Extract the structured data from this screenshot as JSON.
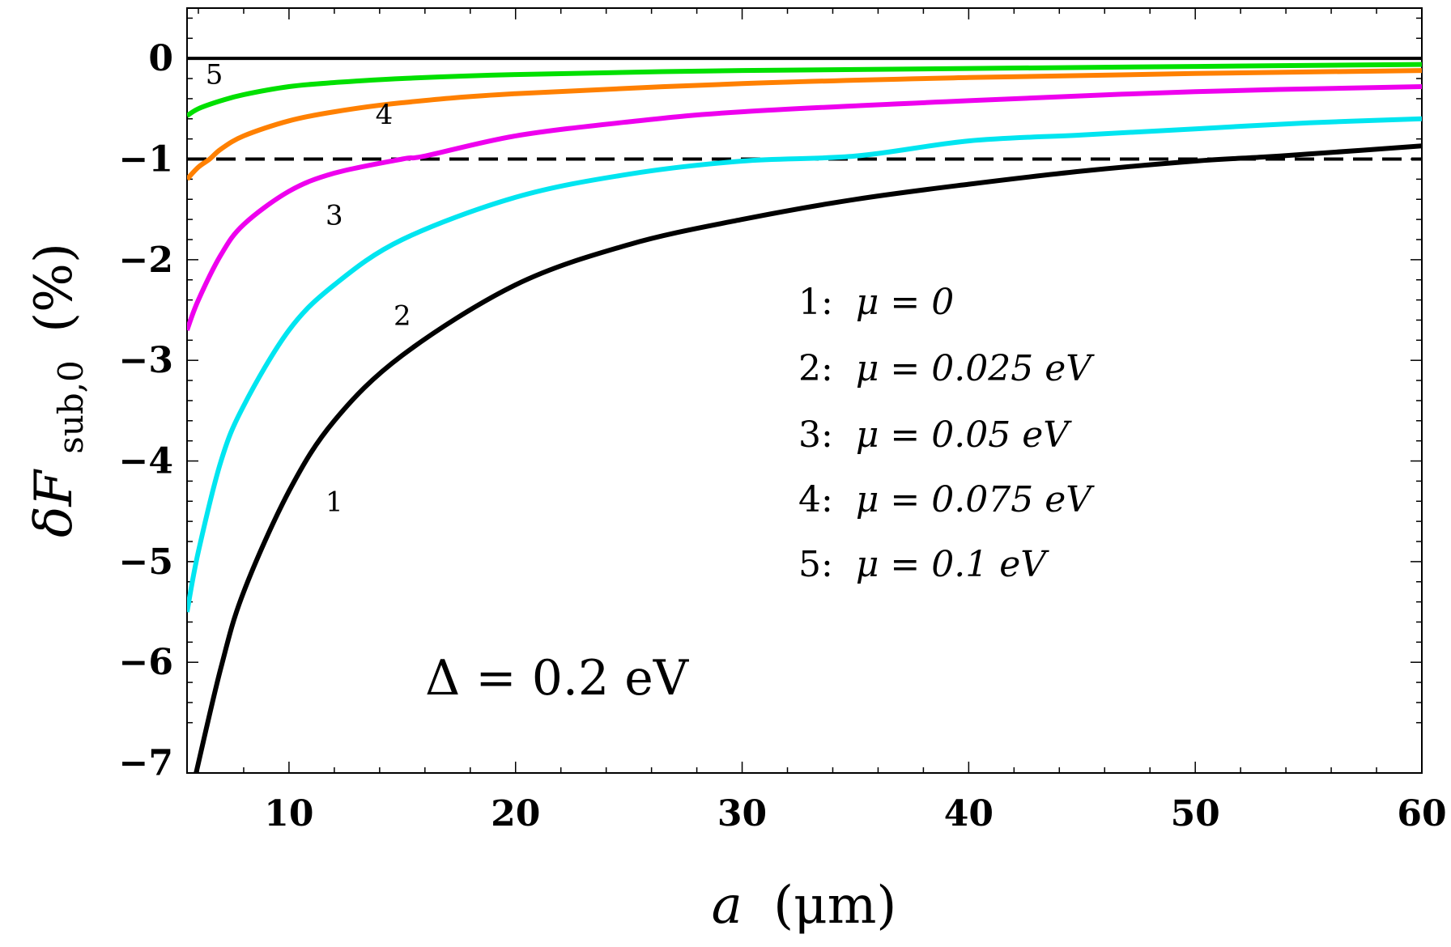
{
  "chart_data": {
    "type": "line",
    "title": "",
    "xlabel": "a (μm)",
    "xlabel_var": "a",
    "xlabel_unit": "(μm)",
    "ylabel": "δF_sub,0 (%)",
    "ylabel_symbol": "δF",
    "ylabel_subscript": "sub,0",
    "ylabel_unit": "(%)",
    "xlim": [
      5.5,
      60
    ],
    "ylim": [
      -7.1,
      0.5
    ],
    "x_ticks": [
      10,
      20,
      30,
      40,
      50,
      60
    ],
    "x_tick_labels": [
      "10",
      "20",
      "30",
      "40",
      "50",
      "60"
    ],
    "y_ticks": [
      0,
      -1,
      -2,
      -3,
      -4,
      -5,
      -6,
      -7
    ],
    "y_tick_labels": [
      "0",
      "−1",
      "−2",
      "−3",
      "−4",
      "−5",
      "−6",
      "−7"
    ],
    "reference_lines": [
      {
        "y": 0,
        "style": "solid",
        "color": "#000000"
      },
      {
        "y": -1,
        "style": "dashed",
        "color": "#000000"
      }
    ],
    "annotation": "Δ = 0.2 eV",
    "legend": [
      {
        "key": "1:",
        "text": "μ = 0"
      },
      {
        "key": "2:",
        "text": "μ = 0.025 eV"
      },
      {
        "key": "3:",
        "text": "μ = 0.05 eV"
      },
      {
        "key": "4:",
        "text": "μ = 0.075 eV"
      },
      {
        "key": "5:",
        "text": "μ = 0.1 eV"
      }
    ],
    "series": [
      {
        "name": "1",
        "label": "1",
        "color": "#000000",
        "x": [
          5.9,
          7,
          8,
          10,
          12,
          15,
          20,
          25,
          30,
          35,
          40,
          45,
          50,
          53,
          55,
          60
        ],
        "y": [
          -7.1,
          -6.05,
          -5.3,
          -4.3,
          -3.6,
          -2.95,
          -2.25,
          -1.85,
          -1.6,
          -1.4,
          -1.25,
          -1.12,
          -1.02,
          -0.98,
          -0.95,
          -0.87
        ]
      },
      {
        "name": "2",
        "label": "2",
        "color": "#00e5f0",
        "x": [
          5.5,
          6,
          7,
          8,
          10,
          12,
          15,
          20,
          25,
          30,
          35,
          40,
          45,
          50,
          55,
          60
        ],
        "y": [
          -5.5,
          -4.9,
          -4.0,
          -3.45,
          -2.7,
          -2.25,
          -1.8,
          -1.38,
          -1.15,
          -1.02,
          -0.97,
          -0.82,
          -0.76,
          -0.7,
          -0.64,
          -0.6
        ]
      },
      {
        "name": "3",
        "label": "3",
        "color": "#ee00ee",
        "x": [
          5.5,
          6,
          7,
          8,
          10,
          12,
          15,
          16,
          20,
          25,
          30,
          40,
          50,
          60
        ],
        "y": [
          -2.7,
          -2.4,
          -1.95,
          -1.65,
          -1.32,
          -1.14,
          -1.0,
          -0.97,
          -0.77,
          -0.63,
          -0.53,
          -0.42,
          -0.33,
          -0.28
        ]
      },
      {
        "name": "4",
        "label": "4",
        "color": "#ff8000",
        "x": [
          5.5,
          6,
          6.5,
          7,
          8,
          10,
          12,
          15,
          20,
          30,
          40,
          50,
          60
        ],
        "y": [
          -1.2,
          -1.08,
          -1.0,
          -0.9,
          -0.77,
          -0.62,
          -0.53,
          -0.44,
          -0.35,
          -0.25,
          -0.19,
          -0.15,
          -0.12
        ]
      },
      {
        "name": "5",
        "label": "5",
        "color": "#00e000",
        "x": [
          5.5,
          6,
          7,
          8,
          10,
          12,
          15,
          20,
          30,
          40,
          50,
          60
        ],
        "y": [
          -0.57,
          -0.5,
          -0.42,
          -0.36,
          -0.28,
          -0.24,
          -0.2,
          -0.16,
          -0.12,
          -0.1,
          -0.08,
          -0.06
        ]
      }
    ],
    "curve_label_positions": [
      {
        "label": "1",
        "x": 12,
        "y": -4.5
      },
      {
        "label": "2",
        "x": 15,
        "y": -2.65
      },
      {
        "label": "3",
        "x": 12,
        "y": -1.65
      },
      {
        "label": "4",
        "x": 14.2,
        "y": -0.65
      },
      {
        "label": "5",
        "x": 6.7,
        "y": -0.25
      }
    ]
  }
}
